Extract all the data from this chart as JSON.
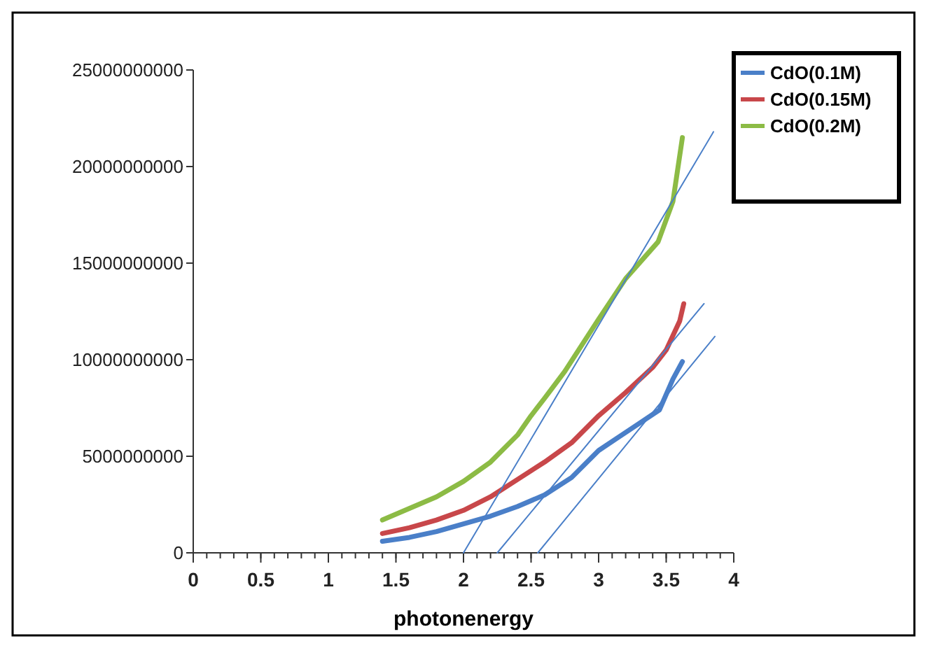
{
  "chart_data": {
    "type": "line",
    "xlabel": "photonenergy",
    "xlim": [
      0,
      4
    ],
    "xticks": [
      0,
      0.5,
      1,
      1.5,
      2,
      2.5,
      3,
      3.5,
      4
    ],
    "ylim": [
      0,
      25000000000
    ],
    "yticks": [
      0,
      5000000000,
      10000000000,
      15000000000,
      20000000000,
      25000000000
    ],
    "grid": false,
    "legend": "top right",
    "marker": "none",
    "line_style": "solid",
    "series": [
      {
        "name": "CdO(0.1M)",
        "color": "#4a7fc8",
        "x": [
          1.4,
          1.6,
          1.8,
          2.0,
          2.2,
          2.4,
          2.6,
          2.8,
          3.0,
          3.15,
          3.3,
          3.45,
          3.55,
          3.62
        ],
        "values": [
          600000000,
          800000000,
          1100000000,
          1500000000,
          1900000000,
          2400000000,
          3000000000,
          3900000000,
          5300000000,
          6000000000,
          6700000000,
          7400000000,
          9000000000,
          9900000000
        ]
      },
      {
        "name": "CdO(0.15M)",
        "color": "#c8474a",
        "x": [
          1.4,
          1.6,
          1.8,
          2.0,
          2.2,
          2.4,
          2.6,
          2.8,
          3.0,
          3.2,
          3.4,
          3.5,
          3.6,
          3.63
        ],
        "values": [
          1000000000,
          1300000000,
          1700000000,
          2200000000,
          2900000000,
          3800000000,
          4700000000,
          5700000000,
          7100000000,
          8300000000,
          9600000000,
          10500000000,
          12000000000,
          12900000000
        ]
      },
      {
        "name": "CdO(0.2M)",
        "color": "#8cbb45",
        "x": [
          1.4,
          1.6,
          1.8,
          2.0,
          2.2,
          2.4,
          2.5,
          2.6,
          2.75,
          3.0,
          3.2,
          3.44,
          3.55,
          3.62
        ],
        "values": [
          1700000000,
          2300000000,
          2900000000,
          3700000000,
          4700000000,
          6100000000,
          7100000000,
          8000000000,
          9400000000,
          12100000000,
          14200000000,
          16100000000,
          18200000000,
          21500000000
        ]
      },
      {
        "type": "line",
        "color": "#4a7fc8",
        "x": [
          2.0,
          3.85
        ],
        "values": [
          0,
          21800000000
        ]
      },
      {
        "type": "line",
        "color": "#4a7fc8",
        "x": [
          2.25,
          3.78
        ],
        "values": [
          0,
          12900000000
        ]
      },
      {
        "type": "line",
        "color": "#4a7fc8",
        "x": [
          2.55,
          3.86
        ],
        "values": [
          0,
          11200000000
        ]
      }
    ]
  }
}
